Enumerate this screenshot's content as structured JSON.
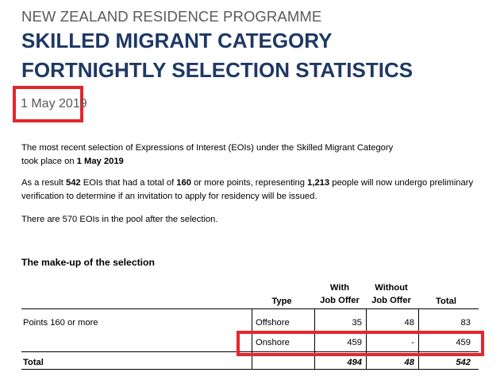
{
  "header": {
    "programme": "NEW ZEALAND RESIDENCE PROGRAMME",
    "title_line1": "SKILLED MIGRANT CATEGORY",
    "title_line2": "FORTNIGHTLY SELECTION STATISTICS",
    "date": "1 May 2019"
  },
  "intro": {
    "p1_text_a": "The most recent selection of Expressions of Interest (EOIs) under the Skilled Migrant Category",
    "p1_text_b": "took place on ",
    "p1_date": "1 May 2019",
    "p2_a": "As a result ",
    "p2_count": "542",
    "p2_b": " EOIs that had a total of ",
    "p2_points": "160",
    "p2_c": " or more points, representing ",
    "p2_people": "1,213",
    "p2_d": " people will now undergo preliminary",
    "p2_e": "verification to determine if an invitation to apply for residency will be issued.",
    "p3": "There are 570 EOIs in the pool after the selection."
  },
  "section_title": "The make-up of the selection",
  "table": {
    "headers": {
      "type": "Type",
      "with_l1": "With",
      "with_l2": "Job Offer",
      "without_l1": "Without",
      "without_l2": "Job Offer",
      "total": "Total"
    },
    "rows": [
      {
        "label": "Points 160 or more",
        "type": "Offshore",
        "with": "35",
        "without": "48",
        "total": "83"
      },
      {
        "label": "",
        "type": "Onshore",
        "with": "459",
        "without": "-",
        "total": "459"
      }
    ],
    "total_row": {
      "label": "Total",
      "with": "494",
      "without": "48",
      "total": "542"
    }
  },
  "highlight_color": "#e5262d",
  "title_color": "#1f3864"
}
